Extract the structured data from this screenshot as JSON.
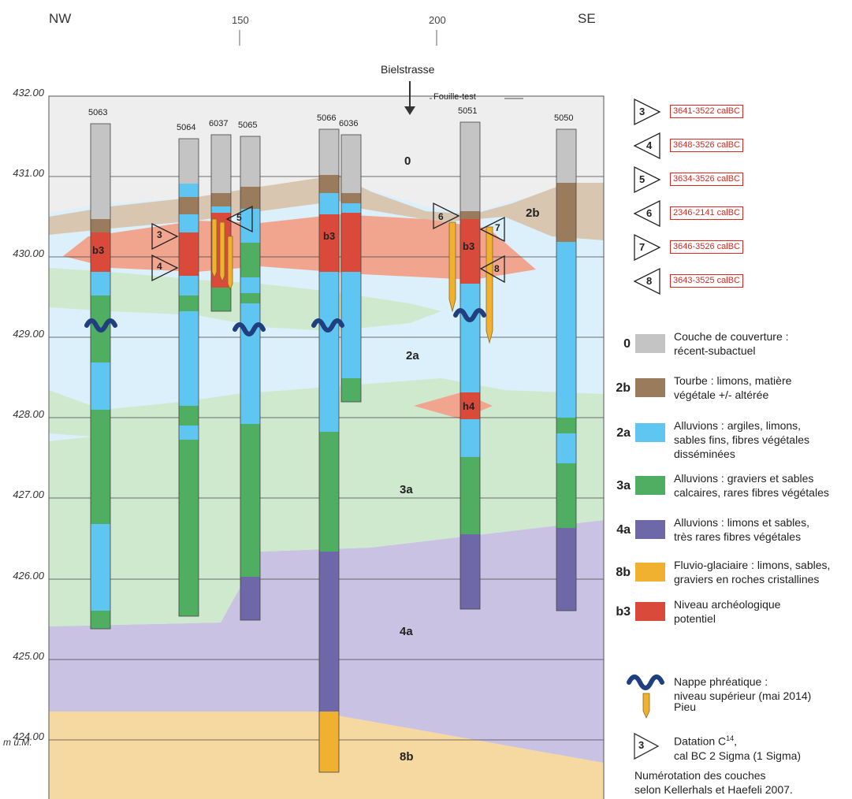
{
  "header": {
    "nw": "NW",
    "se": "SE",
    "tick_150": "150",
    "tick_200": "200",
    "street": "Bielstrasse",
    "test_pit": "Fouille-test"
  },
  "axis": {
    "labels": [
      "432.00",
      "431.00",
      "430.00",
      "429.00",
      "428.00",
      "427.00",
      "426.00",
      "425.00",
      "424.00"
    ],
    "unit": "m ü.M."
  },
  "boreholes": [
    {
      "id": "5063"
    },
    {
      "id": "5064"
    },
    {
      "id": "6037"
    },
    {
      "id": "5065"
    },
    {
      "id": "5066"
    },
    {
      "id": "6036"
    },
    {
      "id": "5051"
    },
    {
      "id": "5050"
    }
  ],
  "layer_labels": {
    "l0": "0",
    "l2a": "2a",
    "l2b": "2b",
    "l3a": "3a",
    "l4a": "4a",
    "l8b": "8b",
    "b3_left": "b3",
    "b3_mid": "b3",
    "b3_right": "b3",
    "h4": "h4"
  },
  "markers": {
    "m3": "3",
    "m4": "4",
    "m5": "5",
    "m6": "6",
    "m7": "7",
    "m8": "8"
  },
  "dating_legend": [
    {
      "num": "3",
      "date": "3641-3522 calBC"
    },
    {
      "num": "4",
      "date": "3648-3526 calBC"
    },
    {
      "num": "5",
      "date": "3634-3526 calBC"
    },
    {
      "num": "6",
      "date": "2346-2141 calBC"
    },
    {
      "num": "7",
      "date": "3646-3526 calBC"
    },
    {
      "num": "8",
      "date": "3643-3525 calBC"
    }
  ],
  "legend": {
    "items": [
      {
        "code": "0",
        "line1": "Couche de couverture :",
        "line2": "récent-subactuel",
        "line3": "",
        "color": "#c4c4c4"
      },
      {
        "code": "2b",
        "line1": "Tourbe : limons, matière",
        "line2": "végétale +/- altérée",
        "line3": "",
        "color": "#9a7b5b"
      },
      {
        "code": "2a",
        "line1": "Alluvions : argiles, limons,",
        "line2": "sables fins, fibres végétales",
        "line3": "disséminées",
        "color": "#5ec6f0"
      },
      {
        "code": "3a",
        "line1": "Alluvions : graviers et sables",
        "line2": "calcaires, rares fibres végétales",
        "line3": "",
        "color": "#4fae62"
      },
      {
        "code": "4a",
        "line1": "Alluvions : limons et sables,",
        "line2": "très rares fibres végétales",
        "line3": "",
        "color": "#6f68a8"
      },
      {
        "code": "8b",
        "line1": "Fluvio-glaciaire : limons, sables,",
        "line2": "graviers en roches cristallines",
        "line3": "",
        "color": "#f0b030"
      },
      {
        "code": "b3",
        "line1": "Niveau archéologique",
        "line2": "potentiel",
        "line3": "",
        "color": "#d94a3a"
      }
    ],
    "water_line1": "Nappe phréatique :",
    "water_line2": "niveau supérieur (mai 2014)",
    "pile": "Pieu",
    "dating_num": "3",
    "dating_line1": "Datation C",
    "dating_sup": "14",
    "dating_line1_end": ",",
    "dating_line2": "cal BC 2 Sigma (1 Sigma)",
    "note_line1": "Numérotation des couches",
    "note_line2": "selon Kellerhals et Haefeli 2007."
  },
  "colors": {
    "cover": "#c4c4c4",
    "peat": "#9a7b5b",
    "alluvium_fine": "#5ec6f0",
    "alluvium_gravel": "#4fae62",
    "alluvium_silt": "#6f68a8",
    "fluvioglacial": "#f0b030",
    "archaeo": "#d94a3a",
    "dating_red": "#d8281f",
    "water_symbol": "#1f3f7f"
  }
}
